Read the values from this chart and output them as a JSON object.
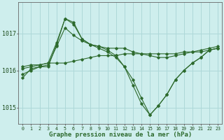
{
  "xlabel": "Graphe pression niveau de la mer (hPa)",
  "background_color": "#ceeeed",
  "grid_color": "#add8d8",
  "line_color": "#2d6a2d",
  "x_ticks": [
    0,
    1,
    2,
    3,
    4,
    5,
    6,
    7,
    8,
    9,
    10,
    11,
    12,
    13,
    14,
    15,
    16,
    17,
    18,
    19,
    20,
    21,
    22,
    23
  ],
  "ylim": [
    1014.55,
    1017.85
  ],
  "yticks": [
    1015,
    1016,
    1017
  ],
  "series": [
    {
      "x": [
        0,
        1,
        2,
        3,
        4,
        5,
        6,
        7,
        8,
        9,
        10,
        11,
        12,
        13,
        14,
        15,
        16,
        17,
        18,
        19,
        20,
        21,
        22,
        23
      ],
      "y": [
        1016.05,
        1016.1,
        1016.15,
        1016.2,
        1016.2,
        1016.2,
        1016.25,
        1016.3,
        1016.35,
        1016.4,
        1016.4,
        1016.4,
        1016.45,
        1016.45,
        1016.45,
        1016.45,
        1016.45,
        1016.45,
        1016.45,
        1016.5,
        1016.5,
        1016.5,
        1016.55,
        1016.6
      ]
    },
    {
      "x": [
        0,
        1,
        2,
        3,
        4,
        5,
        6,
        7,
        8,
        9,
        10,
        11,
        12,
        13,
        14,
        15,
        16,
        17,
        18,
        19,
        20,
        21,
        22,
        23
      ],
      "y": [
        1016.1,
        1016.15,
        1016.15,
        1016.2,
        1016.75,
        1017.4,
        1017.3,
        1016.85,
        1016.7,
        1016.65,
        1016.6,
        1016.6,
        1016.6,
        1016.5,
        1016.45,
        1016.4,
        1016.35,
        1016.35,
        1016.4,
        1016.45,
        1016.5,
        1016.55,
        1016.6,
        1016.65
      ]
    },
    {
      "x": [
        0,
        1,
        2,
        3,
        4,
        5,
        6,
        7,
        8,
        9,
        10,
        11,
        12,
        13,
        14,
        15,
        16,
        17,
        18,
        19,
        20,
        21,
        22,
        23
      ],
      "y": [
        1015.9,
        1016.0,
        1016.1,
        1016.1,
        1016.7,
        1017.4,
        1017.25,
        1016.85,
        1016.7,
        1016.6,
        1016.5,
        1016.35,
        1016.1,
        1015.75,
        1015.25,
        1014.8,
        1015.05,
        1015.35,
        1015.75,
        1016.0,
        1016.2,
        1016.35,
        1016.55,
        1016.6
      ]
    },
    {
      "x": [
        0,
        1,
        2,
        3,
        4,
        5,
        6,
        7,
        8,
        9,
        10,
        11,
        12,
        13,
        14,
        15,
        16,
        17,
        18,
        19,
        20,
        21,
        22,
        23
      ],
      "y": [
        1015.8,
        1016.05,
        1016.1,
        1016.15,
        1016.65,
        1017.15,
        1016.95,
        1016.8,
        1016.7,
        1016.65,
        1016.55,
        1016.4,
        1016.1,
        1015.6,
        1015.1,
        1014.8,
        1015.05,
        1015.35,
        1015.75,
        1016.0,
        1016.2,
        1016.35,
        1016.55,
        1016.6
      ]
    }
  ]
}
